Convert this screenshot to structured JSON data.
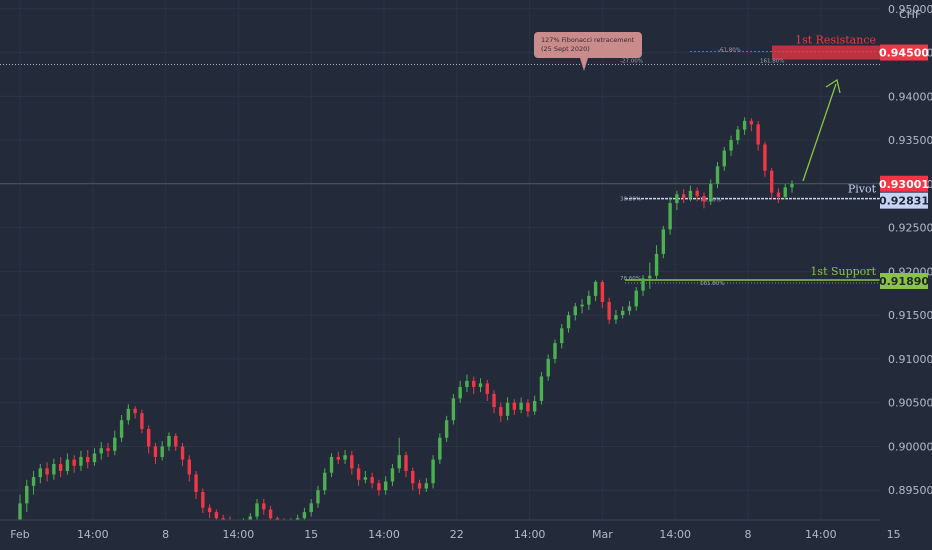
{
  "chart_data": {
    "type": "candlestick",
    "currency": "CHF",
    "y_axis": {
      "range": [
        0.8916,
        0.951
      ],
      "ticks": [
        "0.89500",
        "0.90000",
        "0.90500",
        "0.91000",
        "0.91500",
        "0.92000",
        "0.92500",
        "0.93000",
        "0.93500",
        "0.94000",
        "0.94500",
        "0.95000"
      ]
    },
    "x_axis": {
      "ticks": [
        "Feb",
        "14:00",
        "8",
        "14:00",
        "15",
        "14:00",
        "22",
        "14:00",
        "Mar",
        "14:00",
        "8",
        "14:00",
        "15"
      ]
    },
    "price_labels": {
      "resistance": "0.94500",
      "current": "0.93001",
      "pivot": "0.92831",
      "support": "0.91890"
    },
    "levels": [
      {
        "name": "1st Resistance",
        "value": 0.945,
        "color": "#f23645"
      },
      {
        "name": "Pivot",
        "value": 0.92831,
        "color": "#9fb4e6"
      },
      {
        "name": "1st Support",
        "value": 0.9189,
        "color": "#8bc34a"
      }
    ],
    "current_price": 0.93001,
    "annotation": {
      "line1": "127% Fibonacci retracement",
      "line2": "(25 Sept 2020)"
    },
    "fib_labels": {
      "res_618": "-61.80%",
      "res_27": "-27.00%",
      "res_1618": "161.80%",
      "piv_382": "38.20%",
      "piv_786": "78.60%",
      "sup_786": "78.60%",
      "sup_1618": "161.80%"
    },
    "colors": {
      "up": "#4caf50",
      "down": "#f23645",
      "background": "#232b3a"
    },
    "candles": [
      [
        0.8915,
        0.8935,
        0.8905,
        0.8945
      ],
      [
        0.8935,
        0.8955,
        0.8925,
        0.8962
      ],
      [
        0.8955,
        0.8965,
        0.8945,
        0.8972
      ],
      [
        0.8965,
        0.8975,
        0.8958,
        0.898
      ],
      [
        0.8975,
        0.8968,
        0.896,
        0.8982
      ],
      [
        0.8968,
        0.898,
        0.8962,
        0.8986
      ],
      [
        0.898,
        0.8972,
        0.8965,
        0.8988
      ],
      [
        0.8972,
        0.8985,
        0.8968,
        0.8992
      ],
      [
        0.8985,
        0.8978,
        0.897,
        0.899
      ],
      [
        0.8978,
        0.8988,
        0.8972,
        0.8995
      ],
      [
        0.8988,
        0.8982,
        0.8975,
        0.8996
      ],
      [
        0.8982,
        0.8992,
        0.8978,
        0.8998
      ],
      [
        0.8992,
        0.8998,
        0.8985,
        0.9005
      ],
      [
        0.8998,
        0.8995,
        0.8988,
        0.9004
      ],
      [
        0.8995,
        0.901,
        0.899,
        0.9018
      ],
      [
        0.901,
        0.903,
        0.9005,
        0.9036
      ],
      [
        0.903,
        0.9043,
        0.9025,
        0.9048
      ],
      [
        0.9043,
        0.9038,
        0.9032,
        0.9046
      ],
      [
        0.9038,
        0.902,
        0.9015,
        0.9042
      ],
      [
        0.902,
        0.9,
        0.8992,
        0.9024
      ],
      [
        0.9,
        0.8988,
        0.898,
        0.9004
      ],
      [
        0.8988,
        0.9,
        0.8984,
        0.9006
      ],
      [
        0.9,
        0.9012,
        0.8995,
        0.9016
      ],
      [
        0.9012,
        0.9,
        0.8995,
        0.9015
      ],
      [
        0.9,
        0.8985,
        0.8978,
        0.9004
      ],
      [
        0.8985,
        0.8968,
        0.896,
        0.899
      ],
      [
        0.8968,
        0.8948,
        0.894,
        0.8972
      ],
      [
        0.8948,
        0.893,
        0.8924,
        0.8952
      ],
      [
        0.893,
        0.8925,
        0.8918,
        0.8934
      ],
      [
        0.8925,
        0.8918,
        0.8912,
        0.8928
      ],
      [
        0.8918,
        0.8916,
        0.891,
        0.8922
      ],
      [
        0.8916,
        0.8914,
        0.8908,
        0.892
      ],
      [
        0.8914,
        0.8912,
        0.8906,
        0.8916
      ],
      [
        0.8912,
        0.8914,
        0.8906,
        0.8918
      ],
      [
        0.8914,
        0.892,
        0.891,
        0.8924
      ],
      [
        0.892,
        0.8935,
        0.8915,
        0.894
      ],
      [
        0.8935,
        0.8928,
        0.8922,
        0.894
      ],
      [
        0.8928,
        0.8918,
        0.8912,
        0.8932
      ],
      [
        0.8918,
        0.8915,
        0.891,
        0.892
      ],
      [
        0.8915,
        0.8912,
        0.8908,
        0.8918
      ],
      [
        0.8912,
        0.8914,
        0.8908,
        0.8918
      ],
      [
        0.8914,
        0.8918,
        0.891,
        0.8922
      ],
      [
        0.8918,
        0.8925,
        0.8915,
        0.893
      ],
      [
        0.8925,
        0.8935,
        0.892,
        0.894
      ],
      [
        0.8935,
        0.895,
        0.893,
        0.8955
      ],
      [
        0.895,
        0.897,
        0.8945,
        0.8975
      ],
      [
        0.897,
        0.8988,
        0.8965,
        0.8992
      ],
      [
        0.8988,
        0.8985,
        0.898,
        0.8994
      ],
      [
        0.8985,
        0.899,
        0.898,
        0.8996
      ],
      [
        0.899,
        0.8975,
        0.8968,
        0.8995
      ],
      [
        0.8975,
        0.8962,
        0.8955,
        0.898
      ],
      [
        0.8962,
        0.8965,
        0.8958,
        0.8972
      ],
      [
        0.8965,
        0.8958,
        0.8952,
        0.897
      ],
      [
        0.8958,
        0.895,
        0.8944,
        0.8962
      ],
      [
        0.895,
        0.896,
        0.8945,
        0.8966
      ],
      [
        0.896,
        0.8975,
        0.8955,
        0.898
      ],
      [
        0.8975,
        0.899,
        0.897,
        0.901
      ],
      [
        0.899,
        0.8972,
        0.8965,
        0.8994
      ],
      [
        0.8972,
        0.8958,
        0.895,
        0.8976
      ],
      [
        0.8958,
        0.8952,
        0.8945,
        0.8962
      ],
      [
        0.8952,
        0.8958,
        0.8948,
        0.8964
      ],
      [
        0.8958,
        0.8985,
        0.8952,
        0.899
      ],
      [
        0.8985,
        0.901,
        0.898,
        0.9015
      ],
      [
        0.901,
        0.903,
        0.9005,
        0.9035
      ],
      [
        0.903,
        0.9055,
        0.9025,
        0.906
      ],
      [
        0.9055,
        0.9068,
        0.905,
        0.9075
      ],
      [
        0.9068,
        0.9075,
        0.9062,
        0.9082
      ],
      [
        0.9075,
        0.9068,
        0.906,
        0.908
      ],
      [
        0.9068,
        0.9072,
        0.9062,
        0.9078
      ],
      [
        0.9072,
        0.906,
        0.9052,
        0.9076
      ],
      [
        0.906,
        0.9045,
        0.9038,
        0.9064
      ],
      [
        0.9045,
        0.9035,
        0.9028,
        0.905
      ],
      [
        0.9035,
        0.905,
        0.903,
        0.9056
      ],
      [
        0.905,
        0.9042,
        0.9036,
        0.9054
      ],
      [
        0.9042,
        0.905,
        0.9038,
        0.9056
      ],
      [
        0.905,
        0.904,
        0.9034,
        0.9054
      ],
      [
        0.904,
        0.9052,
        0.9036,
        0.9058
      ],
      [
        0.9052,
        0.908,
        0.9048,
        0.9085
      ],
      [
        0.908,
        0.91,
        0.9075,
        0.9105
      ],
      [
        0.91,
        0.9118,
        0.9095,
        0.9122
      ],
      [
        0.9118,
        0.9135,
        0.9112,
        0.914
      ],
      [
        0.9135,
        0.915,
        0.913,
        0.9154
      ],
      [
        0.915,
        0.916,
        0.9144,
        0.9164
      ],
      [
        0.916,
        0.9162,
        0.9152,
        0.9168
      ],
      [
        0.9162,
        0.9172,
        0.9156,
        0.9178
      ],
      [
        0.9172,
        0.9188,
        0.9166,
        0.919
      ],
      [
        0.9188,
        0.9165,
        0.9158,
        0.919
      ],
      [
        0.9165,
        0.9145,
        0.914,
        0.917
      ],
      [
        0.9145,
        0.915,
        0.914,
        0.9156
      ],
      [
        0.915,
        0.9155,
        0.9146,
        0.916
      ],
      [
        0.9155,
        0.916,
        0.915,
        0.9166
      ],
      [
        0.916,
        0.9178,
        0.9155,
        0.9182
      ],
      [
        0.9178,
        0.9192,
        0.9172,
        0.9196
      ],
      [
        0.9192,
        0.9195,
        0.918,
        0.921
      ],
      [
        0.9195,
        0.922,
        0.919,
        0.923
      ],
      [
        0.922,
        0.9248,
        0.9215,
        0.9252
      ],
      [
        0.9248,
        0.9278,
        0.9242,
        0.9285
      ],
      [
        0.9278,
        0.9288,
        0.927,
        0.9292
      ],
      [
        0.9288,
        0.9284,
        0.9278,
        0.9294
      ],
      [
        0.9284,
        0.9292,
        0.928,
        0.9298
      ],
      [
        0.9292,
        0.9286,
        0.928,
        0.9296
      ],
      [
        0.9286,
        0.928,
        0.9272,
        0.929
      ],
      [
        0.928,
        0.93,
        0.9276,
        0.9305
      ],
      [
        0.93,
        0.932,
        0.9295,
        0.9325
      ],
      [
        0.932,
        0.9338,
        0.9315,
        0.9342
      ],
      [
        0.9338,
        0.935,
        0.9332,
        0.9355
      ],
      [
        0.935,
        0.9362,
        0.9345,
        0.9366
      ],
      [
        0.9362,
        0.9372,
        0.9356,
        0.9376
      ],
      [
        0.9372,
        0.9368,
        0.936,
        0.9375
      ],
      [
        0.9368,
        0.9345,
        0.9338,
        0.9372
      ],
      [
        0.9345,
        0.9315,
        0.9308,
        0.9348
      ],
      [
        0.9315,
        0.929,
        0.9283,
        0.9318
      ],
      [
        0.929,
        0.9285,
        0.9278,
        0.9295
      ],
      [
        0.9285,
        0.9296,
        0.9282,
        0.93
      ],
      [
        0.9296,
        0.93,
        0.929,
        0.9304
      ]
    ]
  }
}
